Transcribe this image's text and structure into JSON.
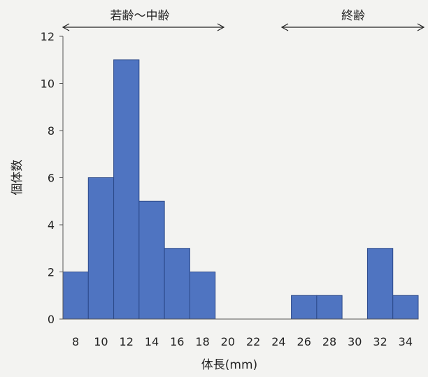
{
  "chart_data": {
    "type": "bar",
    "categories": [
      "8",
      "10",
      "12",
      "14",
      "16",
      "18",
      "20",
      "22",
      "24",
      "26",
      "28",
      "30",
      "32",
      "34"
    ],
    "values": [
      2,
      6,
      11,
      5,
      3,
      2,
      0,
      0,
      0,
      1,
      1,
      0,
      3,
      1
    ],
    "xlabel": "体長(mm)",
    "ylabel": "個体数",
    "ylim": [
      0,
      12
    ],
    "yticks": [
      0,
      2,
      4,
      6,
      8,
      10,
      12
    ],
    "grid": false,
    "bar_color": "#4f74c1",
    "bar_edge_color": "#2c4a8a",
    "annotations": [
      {
        "label": "若齢〜中齢",
        "from": "8",
        "to": "20"
      },
      {
        "label": "終齢",
        "from": "24",
        "to": "34"
      }
    ]
  }
}
